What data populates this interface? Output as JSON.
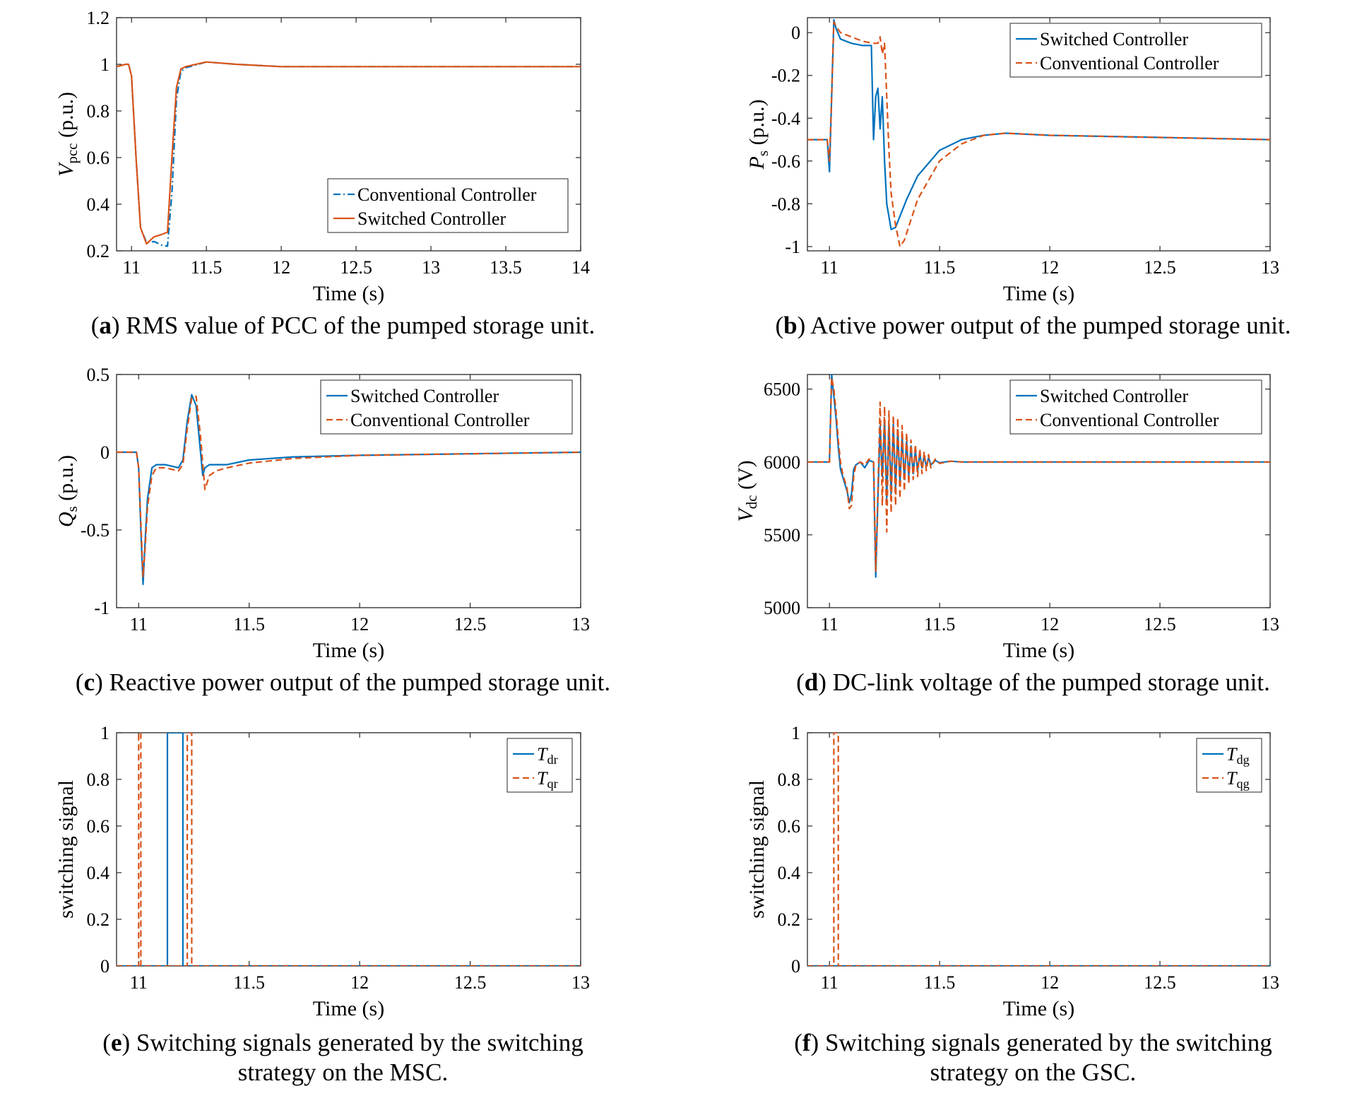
{
  "chart_data": [
    {
      "id": "a",
      "type": "line",
      "xlabel": "Time (s)",
      "ylabel_main": "V",
      "ylabel_sub": "pcc",
      "ylabel_unit": " (p.u.)",
      "xlim": [
        10.9,
        14
      ],
      "ylim": [
        0.2,
        1.2
      ],
      "xticks": [
        11,
        11.5,
        12,
        12.5,
        13,
        13.5,
        14
      ],
      "xtick_labels": [
        "11",
        "11.5",
        "12",
        "12.5",
        "13",
        "13.5",
        "14"
      ],
      "yticks": [
        0.2,
        0.4,
        0.6,
        0.8,
        1,
        1.2
      ],
      "ytick_labels": [
        "0.2",
        "0.4",
        "0.6",
        "0.8",
        "1",
        "1.2"
      ],
      "legend_position": "lower-right",
      "caption_letter": "a",
      "caption_text": " RMS value of PCC of the pumped storage unit.",
      "series": [
        {
          "name": "Conventional Controller",
          "color": "#0072BD",
          "dash": "dashdot",
          "x": [
            10.9,
            10.96,
            10.98,
            11.0,
            11.03,
            11.06,
            11.1,
            11.15,
            11.2,
            11.24,
            11.27,
            11.3,
            11.33,
            11.36,
            11.5,
            11.7,
            12.0,
            12.5,
            13.0,
            13.5,
            14.0
          ],
          "y": [
            0.99,
            1.0,
            1.0,
            0.95,
            0.6,
            0.3,
            0.235,
            0.24,
            0.225,
            0.22,
            0.45,
            0.85,
            0.97,
            0.985,
            1.01,
            1.0,
            0.99,
            0.99,
            0.99,
            0.99,
            0.99
          ]
        },
        {
          "name": "Switched Controller",
          "color": "#D95319",
          "dash": "solid",
          "x": [
            10.9,
            10.96,
            10.98,
            11.0,
            11.03,
            11.06,
            11.1,
            11.15,
            11.2,
            11.24,
            11.27,
            11.3,
            11.33,
            11.36,
            11.5,
            11.7,
            12.0,
            12.5,
            13.0,
            13.5,
            14.0
          ],
          "y": [
            0.99,
            1.0,
            1.0,
            0.95,
            0.6,
            0.3,
            0.23,
            0.26,
            0.27,
            0.28,
            0.6,
            0.9,
            0.98,
            0.99,
            1.01,
            1.0,
            0.99,
            0.99,
            0.99,
            0.99,
            0.99
          ]
        }
      ]
    },
    {
      "id": "b",
      "type": "line",
      "xlabel": "Time (s)",
      "ylabel_main": "P",
      "ylabel_sub": "s",
      "ylabel_unit": " (p.u.)",
      "xlim": [
        10.9,
        13
      ],
      "ylim": [
        -1.02,
        0.07
      ],
      "xticks": [
        11,
        11.5,
        12,
        12.5,
        13
      ],
      "xtick_labels": [
        "11",
        "11.5",
        "12",
        "12.5",
        "13"
      ],
      "yticks": [
        -1,
        -0.8,
        -0.6,
        -0.4,
        -0.2,
        0
      ],
      "ytick_labels": [
        "-1",
        "-0.8",
        "-0.6",
        "-0.4",
        "-0.2",
        "0"
      ],
      "legend_position": "top-right",
      "caption_letter": "b",
      "caption_text": " Active power output of the pumped storage unit.",
      "series": [
        {
          "name": "Switched Controller",
          "color": "#0072BD",
          "dash": "solid",
          "x": [
            10.9,
            10.99,
            11.0,
            11.01,
            11.02,
            11.03,
            11.05,
            11.1,
            11.15,
            11.19,
            11.2,
            11.21,
            11.22,
            11.23,
            11.24,
            11.25,
            11.26,
            11.28,
            11.3,
            11.35,
            11.4,
            11.5,
            11.6,
            11.7,
            11.8,
            12.0,
            12.5,
            13.0
          ],
          "y": [
            -0.5,
            -0.5,
            -0.65,
            -0.3,
            0.06,
            0.02,
            -0.03,
            -0.05,
            -0.06,
            -0.06,
            -0.5,
            -0.3,
            -0.26,
            -0.45,
            -0.3,
            -0.6,
            -0.8,
            -0.92,
            -0.91,
            -0.78,
            -0.67,
            -0.55,
            -0.5,
            -0.48,
            -0.47,
            -0.48,
            -0.49,
            -0.5
          ]
        },
        {
          "name": "Conventional Controller",
          "color": "#D95319",
          "dash": "dashed",
          "x": [
            10.9,
            10.99,
            11.0,
            11.01,
            11.02,
            11.03,
            11.05,
            11.1,
            11.15,
            11.2,
            11.22,
            11.23,
            11.24,
            11.25,
            11.26,
            11.27,
            11.28,
            11.3,
            11.32,
            11.34,
            11.4,
            11.5,
            11.6,
            11.7,
            11.8,
            12.0,
            12.5,
            13.0
          ],
          "y": [
            -0.5,
            -0.5,
            -0.6,
            -0.3,
            0.05,
            0.03,
            0.0,
            -0.02,
            -0.04,
            -0.05,
            -0.05,
            -0.02,
            -0.1,
            -0.05,
            -0.3,
            -0.55,
            -0.75,
            -0.9,
            -1.0,
            -0.97,
            -0.78,
            -0.6,
            -0.52,
            -0.48,
            -0.47,
            -0.48,
            -0.49,
            -0.5
          ]
        }
      ]
    },
    {
      "id": "c",
      "type": "line",
      "xlabel": "Time (s)",
      "ylabel_main": "Q",
      "ylabel_sub": "s",
      "ylabel_unit": " (p.u.)",
      "xlim": [
        10.9,
        13
      ],
      "ylim": [
        -1,
        0.5
      ],
      "xticks": [
        11,
        11.5,
        12,
        12.5,
        13
      ],
      "xtick_labels": [
        "11",
        "11.5",
        "12",
        "12.5",
        "13"
      ],
      "yticks": [
        -1,
        -0.5,
        0,
        0.5
      ],
      "ytick_labels": [
        "-1",
        "-0.5",
        "0",
        "0.5"
      ],
      "legend_position": "top-right",
      "caption_letter": "c",
      "caption_text": " Reactive power output of the pumped storage unit.",
      "series": [
        {
          "name": "Switched Controller",
          "color": "#0072BD",
          "dash": "solid",
          "x": [
            10.9,
            10.99,
            11.0,
            11.01,
            11.02,
            11.03,
            11.04,
            11.06,
            11.08,
            11.12,
            11.18,
            11.2,
            11.22,
            11.24,
            11.26,
            11.28,
            11.29,
            11.3,
            11.32,
            11.4,
            11.5,
            11.7,
            12.0,
            12.5,
            13.0
          ],
          "y": [
            0.0,
            0.0,
            -0.1,
            -0.5,
            -0.85,
            -0.55,
            -0.3,
            -0.1,
            -0.08,
            -0.08,
            -0.1,
            -0.05,
            0.2,
            0.37,
            0.3,
            0.0,
            -0.15,
            -0.1,
            -0.08,
            -0.08,
            -0.05,
            -0.03,
            -0.02,
            -0.01,
            0.0
          ]
        },
        {
          "name": "Conventional Controller",
          "color": "#D95319",
          "dash": "dashed",
          "x": [
            10.9,
            10.99,
            11.0,
            11.01,
            11.02,
            11.03,
            11.04,
            11.06,
            11.08,
            11.12,
            11.18,
            11.2,
            11.22,
            11.24,
            11.26,
            11.28,
            11.3,
            11.32,
            11.35,
            11.4,
            11.5,
            11.7,
            12.0,
            12.5,
            13.0
          ],
          "y": [
            0.0,
            0.0,
            -0.1,
            -0.45,
            -0.8,
            -0.6,
            -0.35,
            -0.15,
            -0.1,
            -0.1,
            -0.12,
            -0.08,
            0.15,
            0.35,
            0.36,
            0.1,
            -0.24,
            -0.15,
            -0.12,
            -0.1,
            -0.07,
            -0.04,
            -0.02,
            -0.01,
            0.0
          ]
        }
      ]
    },
    {
      "id": "d",
      "type": "line",
      "xlabel": "Time (s)",
      "ylabel_main": "V",
      "ylabel_sub": "dc",
      "ylabel_unit": " (V)",
      "xlim": [
        10.9,
        13
      ],
      "ylim": [
        5000,
        6600
      ],
      "xticks": [
        11,
        11.5,
        12,
        12.5,
        13
      ],
      "xtick_labels": [
        "11",
        "11.5",
        "12",
        "12.5",
        "13"
      ],
      "yticks": [
        5000,
        5500,
        6000,
        6500
      ],
      "ytick_labels": [
        "5000",
        "5500",
        "6000",
        "6500"
      ],
      "legend_position": "top-right",
      "caption_letter": "d",
      "caption_text": " DC-link voltage of the pumped storage unit.",
      "series": [
        {
          "name": "Switched Controller",
          "color": "#0072BD",
          "dash": "solid",
          "x": [
            10.9,
            11.0,
            11.01,
            11.02,
            11.03,
            11.04,
            11.05,
            11.06,
            11.07,
            11.08,
            11.09,
            11.1,
            11.11,
            11.12,
            11.14,
            11.16,
            11.18,
            11.2,
            11.21,
            11.22,
            11.23,
            11.24,
            11.25,
            11.26,
            11.27,
            11.28,
            11.29,
            11.3,
            11.31,
            11.32,
            11.33,
            11.34,
            11.35,
            11.36,
            11.37,
            11.38,
            11.39,
            11.4,
            11.41,
            11.42,
            11.43,
            11.44,
            11.45,
            11.46,
            11.48,
            11.5,
            11.55,
            11.6,
            12.0,
            12.5,
            13.0
          ],
          "y": [
            6000,
            6000,
            6600,
            6450,
            6300,
            6100,
            5950,
            5900,
            5850,
            5800,
            5720,
            5780,
            5950,
            5980,
            6000,
            5960,
            6010,
            6000,
            5210,
            5750,
            6250,
            5900,
            6290,
            5750,
            6270,
            5780,
            6260,
            5820,
            6220,
            5850,
            6180,
            5880,
            6140,
            5900,
            6110,
            5920,
            6080,
            5940,
            6060,
            5960,
            6040,
            5970,
            6030,
            5980,
            6010,
            5995,
            6005,
            6000,
            6000,
            6000,
            6000
          ]
        },
        {
          "name": "Conventional Controller",
          "color": "#D95319",
          "dash": "dashed",
          "x": [
            10.9,
            11.0,
            11.01,
            11.02,
            11.03,
            11.04,
            11.05,
            11.06,
            11.07,
            11.08,
            11.09,
            11.1,
            11.11,
            11.12,
            11.14,
            11.16,
            11.18,
            11.2,
            11.21,
            11.22,
            11.23,
            11.24,
            11.25,
            11.26,
            11.27,
            11.28,
            11.29,
            11.3,
            11.31,
            11.32,
            11.33,
            11.34,
            11.35,
            11.36,
            11.37,
            11.38,
            11.39,
            11.4,
            11.41,
            11.42,
            11.43,
            11.44,
            11.45,
            11.46,
            11.48,
            11.5,
            11.55,
            11.6,
            12.0,
            12.5,
            13.0
          ],
          "y": [
            6000,
            6000,
            6580,
            6500,
            6350,
            6150,
            6000,
            5920,
            5870,
            5820,
            5680,
            5700,
            5900,
            5980,
            6000,
            5980,
            6020,
            6000,
            5250,
            5800,
            6410,
            5700,
            6380,
            5520,
            6350,
            5650,
            6320,
            5700,
            6300,
            5750,
            6250,
            5800,
            6200,
            5850,
            6150,
            5880,
            6120,
            5900,
            6090,
            5920,
            6070,
            5940,
            6050,
            5960,
            6020,
            5990,
            6005,
            6000,
            6000,
            6000,
            6000
          ]
        }
      ]
    },
    {
      "id": "e",
      "type": "line",
      "xlabel": "Time (s)",
      "ylabel_main": "switching signal",
      "ylabel_sub": "",
      "ylabel_unit": "",
      "xlim": [
        10.9,
        13
      ],
      "ylim": [
        0,
        1
      ],
      "xticks": [
        11,
        11.5,
        12,
        12.5,
        13
      ],
      "xtick_labels": [
        "11",
        "11.5",
        "12",
        "12.5",
        "13"
      ],
      "yticks": [
        0,
        0.2,
        0.4,
        0.6,
        0.8,
        1
      ],
      "ytick_labels": [
        "0",
        "0.2",
        "0.4",
        "0.6",
        "0.8",
        "1"
      ],
      "legend_position": "top-right",
      "caption_letter": "e",
      "caption_text": " Switching signals generated by the switching",
      "caption_line2": "strategy on the MSC.",
      "series": [
        {
          "name": "T",
          "name_sub": "dr",
          "color": "#0072BD",
          "dash": "solid",
          "x": [
            10.9,
            11.13,
            11.13,
            11.2,
            11.2,
            13.0
          ],
          "y": [
            0,
            0,
            1,
            1,
            0,
            0
          ]
        },
        {
          "name": "T",
          "name_sub": "qr",
          "color": "#D95319",
          "dash": "dashed",
          "x": [
            10.9,
            11.0,
            11.0,
            11.01,
            11.01,
            11.22,
            11.22,
            11.24,
            11.24,
            13.0
          ],
          "y": [
            0,
            0,
            1,
            1,
            0,
            0,
            1,
            1,
            0,
            0
          ]
        }
      ]
    },
    {
      "id": "f",
      "type": "line",
      "xlabel": "Time (s)",
      "ylabel_main": "switching signal",
      "ylabel_sub": "",
      "ylabel_unit": "",
      "xlim": [
        10.9,
        13
      ],
      "ylim": [
        0,
        1
      ],
      "xticks": [
        11,
        11.5,
        12,
        12.5,
        13
      ],
      "xtick_labels": [
        "11",
        "11.5",
        "12",
        "12.5",
        "13"
      ],
      "yticks": [
        0,
        0.2,
        0.4,
        0.6,
        0.8,
        1
      ],
      "ytick_labels": [
        "0",
        "0.2",
        "0.4",
        "0.6",
        "0.8",
        "1"
      ],
      "legend_position": "top-right",
      "caption_letter": "f",
      "caption_text": " Switching signals generated by the switching",
      "caption_line2": "strategy on the GSC.",
      "series": [
        {
          "name": "T",
          "name_sub": "dg",
          "color": "#0072BD",
          "dash": "solid",
          "x": [
            10.9,
            13.0
          ],
          "y": [
            0,
            0
          ]
        },
        {
          "name": "T",
          "name_sub": "qg",
          "color": "#D95319",
          "dash": "dashed",
          "x": [
            10.9,
            11.02,
            11.02,
            11.04,
            11.04,
            13.0
          ],
          "y": [
            0,
            0,
            1,
            1,
            0,
            0
          ]
        }
      ]
    }
  ]
}
